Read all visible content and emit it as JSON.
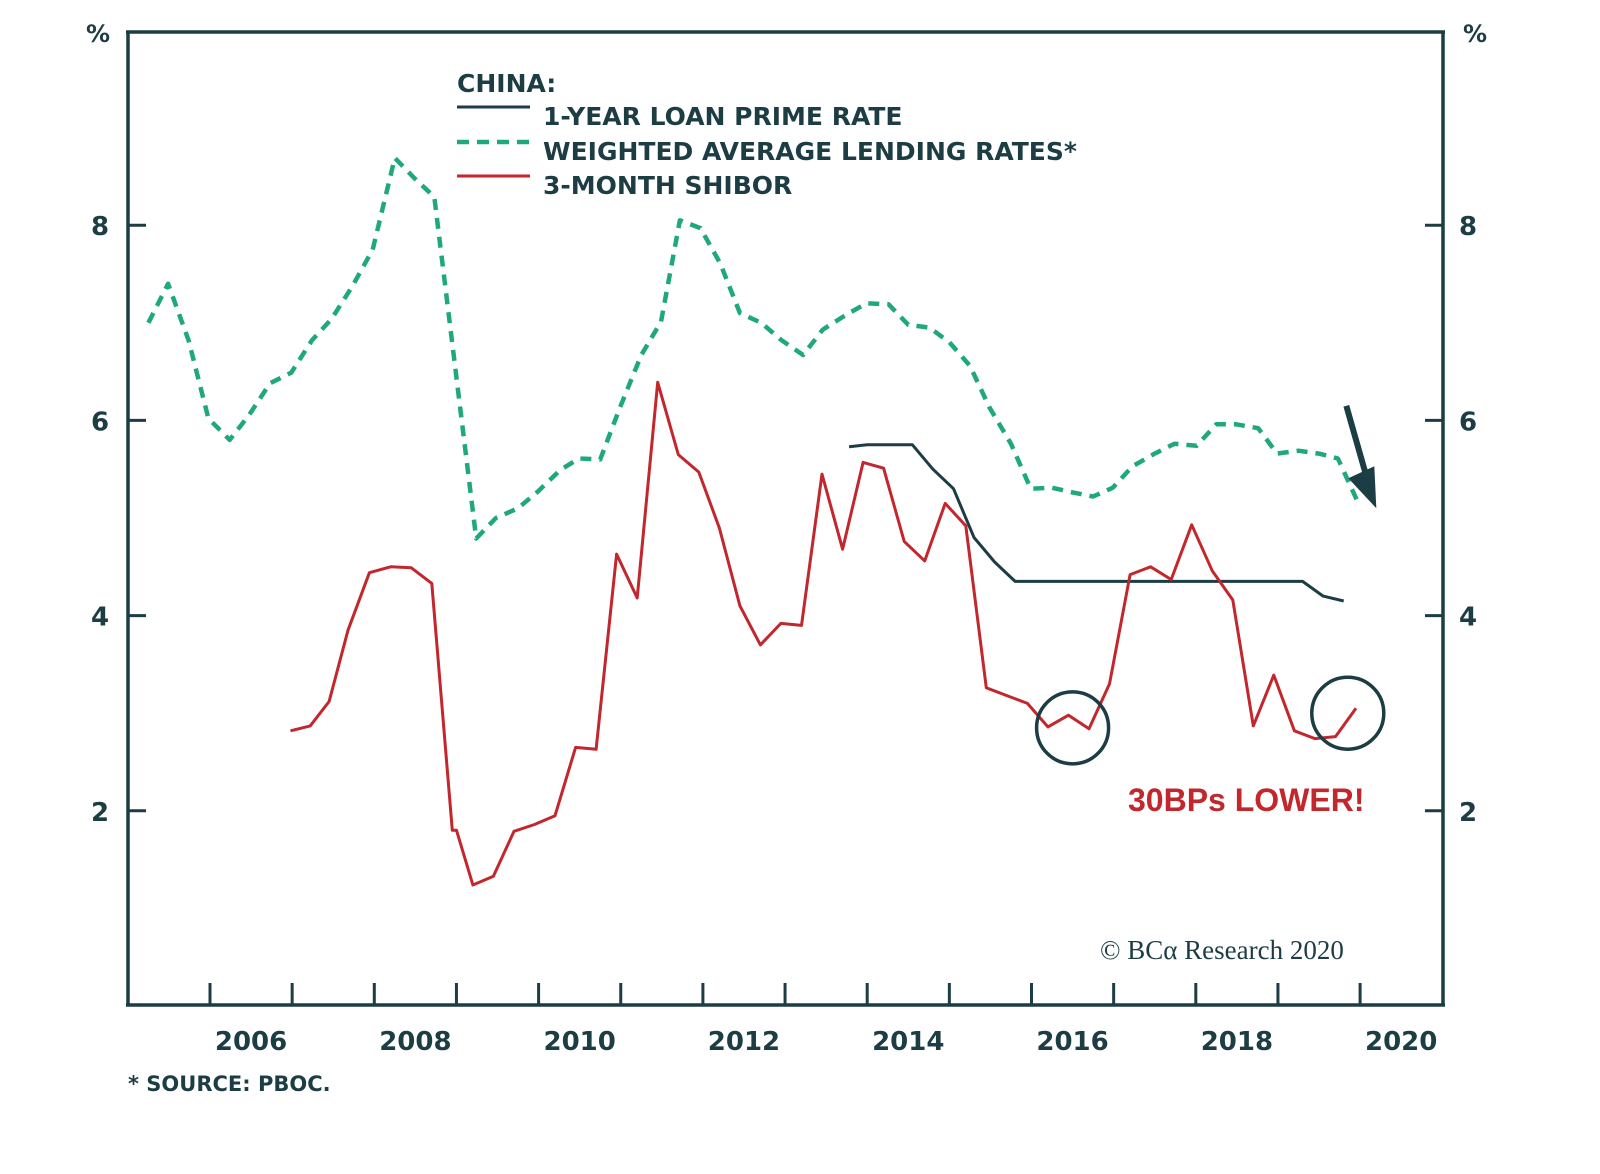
{
  "chart_data": {
    "type": "line",
    "title": "",
    "legend_title": "CHINA:",
    "legend_position": "top-center",
    "left_axis_label": "%",
    "right_axis_label": "%",
    "xlabel": "",
    "ylabel": "%",
    "ylim": [
      0,
      10
    ],
    "xlim": [
      2005.0,
      2021.0
    ],
    "y_ticks": [
      2,
      4,
      6,
      8
    ],
    "y_tick_labels": [
      "2",
      "4",
      "6",
      "8"
    ],
    "x_tick_years": [
      2006,
      2007,
      2008,
      2009,
      2010,
      2011,
      2012,
      2013,
      2014,
      2015,
      2016,
      2017,
      2018,
      2019,
      2020
    ],
    "x_labels": [
      "2006",
      "2008",
      "2010",
      "2012",
      "2014",
      "2016",
      "2018",
      "2020"
    ],
    "grid": false,
    "series": [
      {
        "name": "1-YEAR LOAN PRIME RATE",
        "style": "solid",
        "color": "#1c3d44",
        "x": [
          2013.78,
          2014.0,
          2014.25,
          2014.55,
          2014.8,
          2015.05,
          2015.3,
          2015.55,
          2015.8,
          2016.0,
          2016.5,
          2017.0,
          2017.5,
          2018.0,
          2018.5,
          2019.0,
          2019.3,
          2019.55,
          2019.8
        ],
        "values": [
          5.73,
          5.75,
          5.75,
          5.75,
          5.5,
          5.3,
          4.8,
          4.55,
          4.35,
          4.35,
          4.35,
          4.35,
          4.35,
          4.35,
          4.35,
          4.35,
          4.35,
          4.2,
          4.15
        ]
      },
      {
        "name": "WEIGHTED AVERAGE LENDING RATES*",
        "style": "dashed",
        "color": "#1fa97a",
        "x": [
          2005.25,
          2005.49,
          2005.74,
          2005.98,
          2006.24,
          2006.48,
          2006.73,
          2006.99,
          2007.24,
          2007.48,
          2007.73,
          2007.98,
          2008.25,
          2008.49,
          2008.73,
          2009.24,
          2009.48,
          2009.75,
          2009.99,
          2010.26,
          2010.49,
          2010.75,
          2010.99,
          2011.25,
          2011.49,
          2011.72,
          2011.97,
          2012.21,
          2012.45,
          2012.71,
          2012.96,
          2013.22,
          2013.46,
          2013.74,
          2013.99,
          2014.26,
          2014.5,
          2014.76,
          2015.0,
          2015.25,
          2015.49,
          2015.75,
          2015.99,
          2016.25,
          2016.51,
          2016.75,
          2016.99,
          2017.23,
          2017.5,
          2017.74,
          2018.01,
          2018.25,
          2018.49,
          2018.76,
          2018.99,
          2019.25,
          2019.5,
          2019.73,
          2019.99
        ],
        "values": [
          7.0,
          7.4,
          6.82,
          6.02,
          5.8,
          6.06,
          6.38,
          6.49,
          6.82,
          7.04,
          7.37,
          7.75,
          8.69,
          8.48,
          8.29,
          4.79,
          5.0,
          5.1,
          5.27,
          5.49,
          5.61,
          5.6,
          6.13,
          6.67,
          7.01,
          8.05,
          7.97,
          7.61,
          7.1,
          7.0,
          6.82,
          6.67,
          6.93,
          7.08,
          7.2,
          7.19,
          6.98,
          6.95,
          6.8,
          6.56,
          6.13,
          5.76,
          5.3,
          5.31,
          5.26,
          5.22,
          5.31,
          5.53,
          5.66,
          5.76,
          5.74,
          5.96,
          5.96,
          5.92,
          5.66,
          5.69,
          5.66,
          5.61,
          5.13
        ]
      },
      {
        "name": "3-MONTH SHIBOR",
        "style": "solid",
        "color": "#c1272d",
        "x": [
          2006.98,
          2007.22,
          2007.45,
          2007.68,
          2007.94,
          2008.2,
          2008.45,
          2008.7,
          2008.95,
          2009.0,
          2009.2,
          2009.45,
          2009.7,
          2009.95,
          2010.2,
          2010.45,
          2010.7,
          2010.95,
          2011.2,
          2011.45,
          2011.7,
          2011.95,
          2012.2,
          2012.45,
          2012.7,
          2012.95,
          2013.2,
          2013.45,
          2013.7,
          2013.95,
          2014.2,
          2014.45,
          2014.7,
          2014.95,
          2015.2,
          2015.45,
          2015.7,
          2015.95,
          2016.2,
          2016.45,
          2016.7,
          2016.95,
          2017.2,
          2017.45,
          2017.7,
          2017.95,
          2018.2,
          2018.45,
          2018.7,
          2018.95,
          2019.2,
          2019.45,
          2019.7,
          2019.95
        ],
        "values": [
          2.82,
          2.87,
          3.12,
          3.85,
          4.44,
          4.5,
          4.49,
          4.33,
          1.8,
          1.8,
          1.24,
          1.33,
          1.79,
          1.86,
          1.95,
          2.65,
          2.63,
          4.63,
          4.18,
          6.39,
          5.65,
          5.47,
          4.9,
          4.1,
          3.7,
          3.92,
          3.9,
          5.45,
          4.68,
          5.57,
          5.51,
          4.76,
          4.56,
          5.15,
          4.92,
          3.26,
          3.18,
          3.1,
          2.86,
          2.98,
          2.84,
          3.3,
          4.42,
          4.5,
          4.37,
          4.93,
          4.46,
          4.16,
          2.87,
          3.39,
          2.82,
          2.74,
          2.76,
          3.05
        ]
      }
    ],
    "annotations": [
      {
        "type": "circle",
        "label": "circle-2016",
        "x": 2016.5,
        "y": 2.85
      },
      {
        "type": "circle",
        "label": "circle-2019",
        "x": 2019.85,
        "y": 3.0
      },
      {
        "type": "text",
        "text": "30BPs LOWER!",
        "color": "#c1272d"
      },
      {
        "type": "arrow",
        "direction": "down-right",
        "x": 2020.1,
        "y_from": 6.15,
        "y_to": 5.1
      }
    ]
  },
  "footer": {
    "source_note": "* SOURCE: PBOC.",
    "copyright": "© BCα Research 2020"
  },
  "colors": {
    "axis": "#1c3d44",
    "lpr": "#1c3d44",
    "walr": "#1fa97a",
    "shibor": "#c1272d"
  }
}
